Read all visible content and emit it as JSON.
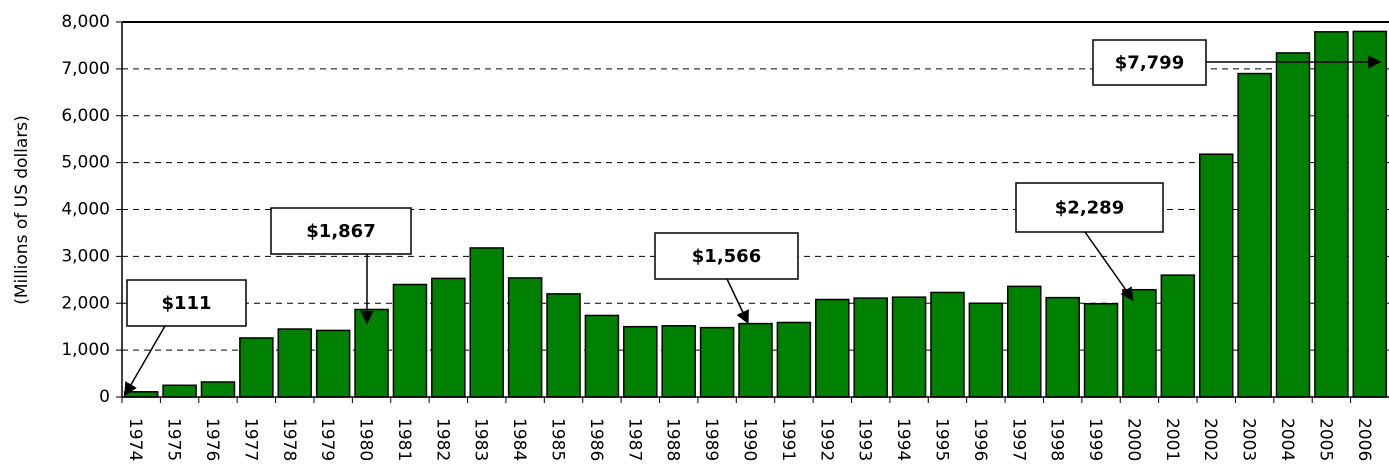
{
  "chart_data": {
    "type": "bar",
    "y_label": "(Millions of US dollars)",
    "categories": [
      "1974",
      "1975",
      "1976",
      "1977",
      "1978",
      "1979",
      "1980",
      "1981",
      "1982",
      "1983",
      "1984",
      "1985",
      "1986",
      "1987",
      "1988",
      "1989",
      "1990",
      "1991",
      "1992",
      "1993",
      "1994",
      "1995",
      "1996",
      "1997",
      "1998",
      "1999",
      "2000",
      "2001",
      "2002",
      "2003",
      "2004",
      "2005",
      "2006"
    ],
    "values": [
      111,
      250,
      320,
      1260,
      1450,
      1420,
      1867,
      2400,
      2530,
      3180,
      2540,
      2200,
      1740,
      1500,
      1520,
      1480,
      1566,
      1590,
      2080,
      2110,
      2130,
      2230,
      2000,
      2360,
      2120,
      1990,
      2289,
      2600,
      5180,
      6900,
      7340,
      7790,
      7799
    ],
    "value_labels": [
      "$111",
      null,
      null,
      null,
      null,
      null,
      "$1,867",
      null,
      null,
      null,
      null,
      null,
      null,
      null,
      null,
      null,
      "$1,566",
      null,
      null,
      null,
      null,
      null,
      null,
      null,
      null,
      null,
      "$2,289",
      null,
      null,
      null,
      null,
      null,
      "$7,799"
    ],
    "color": "#008000",
    "ylim": [
      0,
      8000
    ],
    "yticks": [
      0,
      {
        "value": 1000,
        "label": "1,000"
      },
      {
        "value": 2000,
        "label": "2,000"
      },
      {
        "value": 3000,
        "label": "3,000"
      },
      {
        "value": 4000,
        "label": "4,000"
      },
      {
        "value": 5000,
        "label": "5,000"
      },
      {
        "value": 6000,
        "label": "6,000"
      },
      {
        "value": 7000,
        "label": "7,000"
      },
      {
        "value": 8000,
        "label": "8,000"
      }
    ],
    "grid": true
  }
}
